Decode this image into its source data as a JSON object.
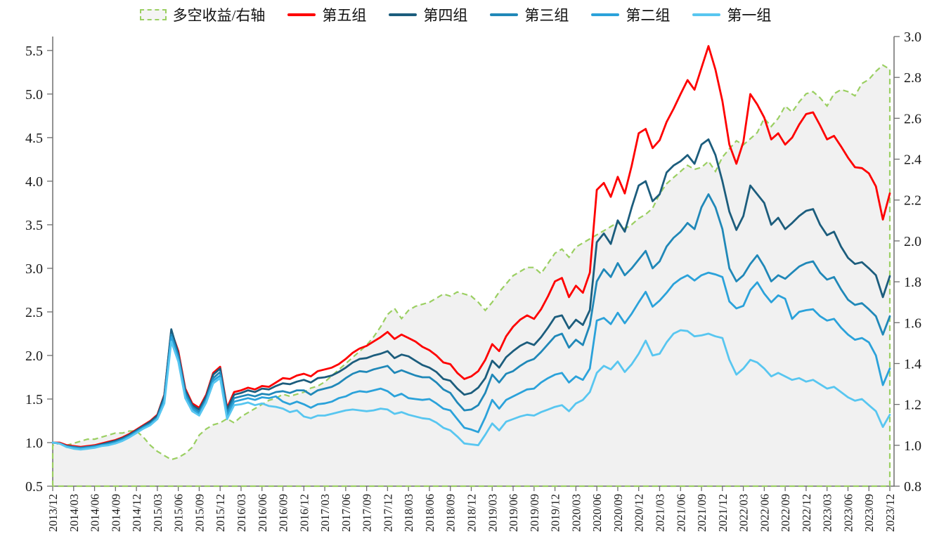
{
  "legend": {
    "items": [
      {
        "label": "多空收益/右轴",
        "kind": "area",
        "color": "#9bcf62"
      },
      {
        "label": "第五组",
        "kind": "line",
        "color": "#fe0000"
      },
      {
        "label": "第四组",
        "kind": "line",
        "color": "#1c5d7d"
      },
      {
        "label": "第三组",
        "kind": "line",
        "color": "#2088b8"
      },
      {
        "label": "第二组",
        "kind": "line",
        "color": "#2ba2da"
      },
      {
        "label": "第一组",
        "kind": "line",
        "color": "#58c6f0"
      }
    ]
  },
  "chart_data": {
    "type": "line",
    "title": "",
    "x_start": "2013/12",
    "x_end": "2023/12",
    "x_step": "monthly",
    "x_tick_labels": [
      "2013/12",
      "2014/03",
      "2014/06",
      "2014/09",
      "2014/12",
      "2015/03",
      "2015/06",
      "2015/09",
      "2015/12",
      "2016/03",
      "2016/06",
      "2016/09",
      "2016/12",
      "2017/03",
      "2017/06",
      "2017/09",
      "2017/12",
      "2018/03",
      "2018/06",
      "2018/09",
      "2018/12",
      "2019/03",
      "2019/06",
      "2019/09",
      "2019/12",
      "2020/03",
      "2020/06",
      "2020/09",
      "2020/12",
      "2021/03",
      "2021/06",
      "2021/09",
      "2021/12",
      "2022/03",
      "2022/06",
      "2022/09",
      "2022/12",
      "2023/03",
      "2023/06",
      "2023/09",
      "2023/12"
    ],
    "left_axis": {
      "min": 0.5,
      "max": 5.66,
      "tick_step": 0.5,
      "ticks": [
        "0.5",
        "1.0",
        "1.5",
        "2.0",
        "2.5",
        "3.0",
        "3.5",
        "4.0",
        "4.5",
        "5.0",
        "5.5"
      ]
    },
    "right_axis": {
      "min": 0.8,
      "max": 3.0,
      "tick_step": 0.2,
      "ticks": [
        "0.8",
        "1.0",
        "1.2",
        "1.4",
        "1.6",
        "1.8",
        "2.0",
        "2.2",
        "2.4",
        "2.6",
        "2.8",
        "3.0"
      ]
    },
    "area_fill_color": "#f1f1f1",
    "grid": "off",
    "legend_position": "top",
    "series": [
      {
        "id": "long-short",
        "name": "多空收益/右轴",
        "axis": "right",
        "style": "dashed-area",
        "color": "#9bcf62",
        "values": [
          1.0,
          1.01,
          1.0,
          1.01,
          1.02,
          1.03,
          1.03,
          1.04,
          1.05,
          1.06,
          1.06,
          1.07,
          1.07,
          1.04,
          1.0,
          0.97,
          0.95,
          0.93,
          0.94,
          0.96,
          0.99,
          1.05,
          1.08,
          1.1,
          1.11,
          1.13,
          1.11,
          1.14,
          1.16,
          1.18,
          1.2,
          1.22,
          1.23,
          1.25,
          1.24,
          1.25,
          1.26,
          1.28,
          1.29,
          1.31,
          1.34,
          1.37,
          1.4,
          1.43,
          1.46,
          1.49,
          1.53,
          1.58,
          1.64,
          1.67,
          1.62,
          1.66,
          1.68,
          1.69,
          1.7,
          1.72,
          1.74,
          1.73,
          1.75,
          1.74,
          1.73,
          1.7,
          1.66,
          1.7,
          1.75,
          1.79,
          1.83,
          1.85,
          1.87,
          1.87,
          1.84,
          1.89,
          1.94,
          1.96,
          1.92,
          1.97,
          1.99,
          2.01,
          2.03,
          2.05,
          2.07,
          2.09,
          2.06,
          2.08,
          2.11,
          2.13,
          2.16,
          2.23,
          2.28,
          2.31,
          2.34,
          2.37,
          2.35,
          2.36,
          2.39,
          2.34,
          2.41,
          2.45,
          2.49,
          2.47,
          2.5,
          2.53,
          2.6,
          2.56,
          2.6,
          2.66,
          2.63,
          2.68,
          2.72,
          2.73,
          2.7,
          2.66,
          2.72,
          2.74,
          2.73,
          2.71,
          2.77,
          2.79,
          2.83,
          2.86,
          2.84
        ]
      },
      {
        "id": "group-5",
        "name": "第五组",
        "axis": "left",
        "style": "solid",
        "color": "#fe0000",
        "values": [
          1.0,
          1.0,
          0.97,
          0.96,
          0.95,
          0.96,
          0.97,
          0.99,
          1.01,
          1.03,
          1.06,
          1.1,
          1.15,
          1.2,
          1.25,
          1.32,
          1.55,
          2.28,
          2.05,
          1.62,
          1.45,
          1.4,
          1.55,
          1.8,
          1.87,
          1.4,
          1.58,
          1.6,
          1.63,
          1.61,
          1.65,
          1.64,
          1.69,
          1.74,
          1.73,
          1.77,
          1.79,
          1.76,
          1.82,
          1.84,
          1.86,
          1.9,
          1.96,
          2.03,
          2.08,
          2.11,
          2.16,
          2.21,
          2.27,
          2.19,
          2.24,
          2.2,
          2.16,
          2.1,
          2.06,
          2.0,
          1.92,
          1.9,
          1.8,
          1.73,
          1.76,
          1.82,
          1.95,
          2.13,
          2.05,
          2.22,
          2.33,
          2.41,
          2.46,
          2.42,
          2.53,
          2.68,
          2.85,
          2.89,
          2.67,
          2.8,
          2.72,
          2.95,
          3.9,
          3.98,
          3.82,
          4.05,
          3.86,
          4.18,
          4.55,
          4.6,
          4.38,
          4.47,
          4.68,
          4.83,
          5.0,
          5.16,
          5.05,
          5.3,
          5.55,
          5.28,
          4.92,
          4.42,
          4.2,
          4.45,
          5.0,
          4.88,
          4.73,
          4.48,
          4.55,
          4.42,
          4.5,
          4.65,
          4.77,
          4.79,
          4.64,
          4.48,
          4.52,
          4.4,
          4.27,
          4.16,
          4.15,
          4.09,
          3.94,
          3.56,
          3.86
        ]
      },
      {
        "id": "group-4",
        "name": "第四组",
        "axis": "left",
        "style": "solid",
        "color": "#1c5d7d",
        "values": [
          1.0,
          0.99,
          0.96,
          0.95,
          0.94,
          0.95,
          0.96,
          0.98,
          1.0,
          1.02,
          1.05,
          1.09,
          1.14,
          1.19,
          1.24,
          1.31,
          1.54,
          2.3,
          2.02,
          1.6,
          1.43,
          1.38,
          1.53,
          1.78,
          1.85,
          1.38,
          1.55,
          1.57,
          1.6,
          1.58,
          1.62,
          1.61,
          1.65,
          1.68,
          1.67,
          1.7,
          1.72,
          1.69,
          1.74,
          1.75,
          1.77,
          1.81,
          1.86,
          1.92,
          1.96,
          1.97,
          2.0,
          2.02,
          2.05,
          1.97,
          2.01,
          1.99,
          1.94,
          1.89,
          1.86,
          1.81,
          1.73,
          1.71,
          1.62,
          1.55,
          1.57,
          1.63,
          1.74,
          1.94,
          1.86,
          1.98,
          2.05,
          2.11,
          2.15,
          2.12,
          2.21,
          2.32,
          2.44,
          2.46,
          2.31,
          2.41,
          2.35,
          2.52,
          3.3,
          3.4,
          3.28,
          3.55,
          3.42,
          3.7,
          3.95,
          4.0,
          3.77,
          3.85,
          4.1,
          4.18,
          4.23,
          4.3,
          4.2,
          4.42,
          4.48,
          4.3,
          4.0,
          3.65,
          3.44,
          3.6,
          3.95,
          3.85,
          3.75,
          3.5,
          3.58,
          3.45,
          3.52,
          3.6,
          3.66,
          3.68,
          3.5,
          3.38,
          3.42,
          3.25,
          3.12,
          3.05,
          3.07,
          3.0,
          2.92,
          2.67,
          2.91
        ]
      },
      {
        "id": "group-3",
        "name": "第三组",
        "axis": "left",
        "style": "solid",
        "color": "#2088b8",
        "values": [
          1.0,
          0.99,
          0.96,
          0.95,
          0.94,
          0.95,
          0.96,
          0.97,
          0.99,
          1.01,
          1.04,
          1.08,
          1.13,
          1.18,
          1.22,
          1.29,
          1.5,
          2.24,
          1.99,
          1.57,
          1.41,
          1.35,
          1.5,
          1.74,
          1.81,
          1.34,
          1.51,
          1.53,
          1.55,
          1.53,
          1.56,
          1.55,
          1.58,
          1.59,
          1.57,
          1.6,
          1.6,
          1.55,
          1.6,
          1.62,
          1.64,
          1.68,
          1.74,
          1.79,
          1.82,
          1.81,
          1.84,
          1.86,
          1.88,
          1.8,
          1.83,
          1.8,
          1.77,
          1.75,
          1.75,
          1.69,
          1.61,
          1.57,
          1.46,
          1.37,
          1.38,
          1.43,
          1.57,
          1.78,
          1.69,
          1.79,
          1.82,
          1.88,
          1.93,
          1.96,
          2.04,
          2.13,
          2.22,
          2.25,
          2.09,
          2.18,
          2.12,
          2.35,
          2.85,
          2.99,
          2.9,
          3.06,
          2.92,
          3.0,
          3.1,
          3.2,
          3.0,
          3.08,
          3.25,
          3.35,
          3.42,
          3.52,
          3.45,
          3.7,
          3.85,
          3.7,
          3.45,
          3.0,
          2.85,
          2.92,
          3.05,
          3.15,
          3.02,
          2.85,
          2.92,
          2.88,
          2.95,
          3.02,
          3.06,
          3.08,
          2.95,
          2.87,
          2.9,
          2.76,
          2.64,
          2.58,
          2.6,
          2.53,
          2.45,
          2.24,
          2.45
        ]
      },
      {
        "id": "group-2",
        "name": "第二组",
        "axis": "left",
        "style": "solid",
        "color": "#2ba2da",
        "values": [
          1.0,
          0.99,
          0.95,
          0.94,
          0.93,
          0.94,
          0.95,
          0.97,
          0.98,
          1.0,
          1.03,
          1.07,
          1.12,
          1.17,
          1.21,
          1.28,
          1.48,
          2.21,
          1.96,
          1.54,
          1.39,
          1.33,
          1.48,
          1.71,
          1.77,
          1.31,
          1.47,
          1.49,
          1.51,
          1.49,
          1.52,
          1.51,
          1.53,
          1.47,
          1.44,
          1.47,
          1.44,
          1.4,
          1.44,
          1.45,
          1.47,
          1.51,
          1.53,
          1.57,
          1.59,
          1.58,
          1.6,
          1.62,
          1.59,
          1.53,
          1.56,
          1.51,
          1.5,
          1.49,
          1.5,
          1.45,
          1.39,
          1.37,
          1.27,
          1.17,
          1.15,
          1.12,
          1.29,
          1.49,
          1.39,
          1.49,
          1.53,
          1.57,
          1.61,
          1.62,
          1.69,
          1.74,
          1.78,
          1.8,
          1.69,
          1.76,
          1.72,
          1.85,
          2.4,
          2.43,
          2.36,
          2.49,
          2.37,
          2.48,
          2.61,
          2.73,
          2.56,
          2.63,
          2.72,
          2.82,
          2.88,
          2.92,
          2.86,
          2.92,
          2.95,
          2.93,
          2.9,
          2.62,
          2.54,
          2.57,
          2.75,
          2.84,
          2.71,
          2.61,
          2.69,
          2.65,
          2.42,
          2.5,
          2.52,
          2.53,
          2.45,
          2.4,
          2.42,
          2.32,
          2.24,
          2.18,
          2.2,
          2.15,
          2.0,
          1.66,
          1.85
        ]
      },
      {
        "id": "group-1",
        "name": "第一组",
        "axis": "left",
        "style": "solid",
        "color": "#58c6f0",
        "values": [
          1.0,
          0.99,
          0.95,
          0.93,
          0.92,
          0.93,
          0.94,
          0.96,
          0.97,
          0.99,
          1.02,
          1.06,
          1.11,
          1.16,
          1.2,
          1.27,
          1.45,
          2.16,
          1.93,
          1.51,
          1.36,
          1.31,
          1.46,
          1.68,
          1.74,
          1.27,
          1.43,
          1.44,
          1.46,
          1.43,
          1.45,
          1.42,
          1.41,
          1.39,
          1.35,
          1.37,
          1.3,
          1.28,
          1.31,
          1.31,
          1.33,
          1.35,
          1.37,
          1.38,
          1.37,
          1.36,
          1.37,
          1.39,
          1.38,
          1.33,
          1.35,
          1.32,
          1.3,
          1.28,
          1.27,
          1.23,
          1.17,
          1.14,
          1.07,
          0.99,
          0.98,
          0.97,
          1.09,
          1.22,
          1.14,
          1.24,
          1.27,
          1.3,
          1.32,
          1.31,
          1.35,
          1.38,
          1.41,
          1.43,
          1.36,
          1.45,
          1.49,
          1.58,
          1.8,
          1.88,
          1.84,
          1.93,
          1.81,
          1.9,
          2.02,
          2.17,
          2.0,
          2.02,
          2.15,
          2.25,
          2.29,
          2.28,
          2.22,
          2.23,
          2.25,
          2.22,
          2.2,
          1.95,
          1.78,
          1.85,
          1.95,
          1.92,
          1.85,
          1.76,
          1.8,
          1.76,
          1.72,
          1.74,
          1.7,
          1.72,
          1.67,
          1.62,
          1.64,
          1.58,
          1.52,
          1.48,
          1.5,
          1.43,
          1.36,
          1.18,
          1.32
        ]
      }
    ]
  }
}
